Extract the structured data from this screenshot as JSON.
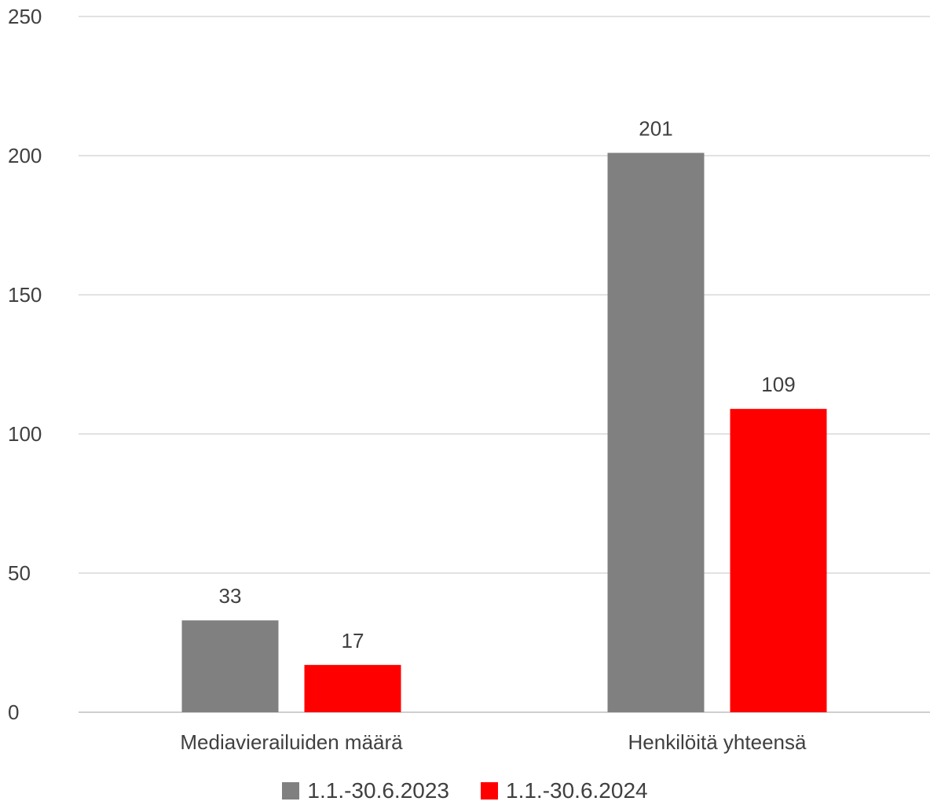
{
  "chart_data": {
    "type": "bar",
    "title": "",
    "xlabel": "",
    "ylabel": "",
    "categories": [
      "Mediavierailuiden määrä",
      "Henkilöitä yhteensä"
    ],
    "series": [
      {
        "name": "1.1.-30.6.2023",
        "values": [
          33,
          201
        ],
        "color": "#808080"
      },
      {
        "name": "1.1.-30.6.2024",
        "values": [
          17,
          109
        ],
        "color": "#ff0000"
      }
    ],
    "ylim": [
      0,
      250
    ],
    "yticks": [
      "0",
      "50",
      "100",
      "150",
      "200",
      "250"
    ],
    "grid": true,
    "legend_position": "bottom"
  }
}
